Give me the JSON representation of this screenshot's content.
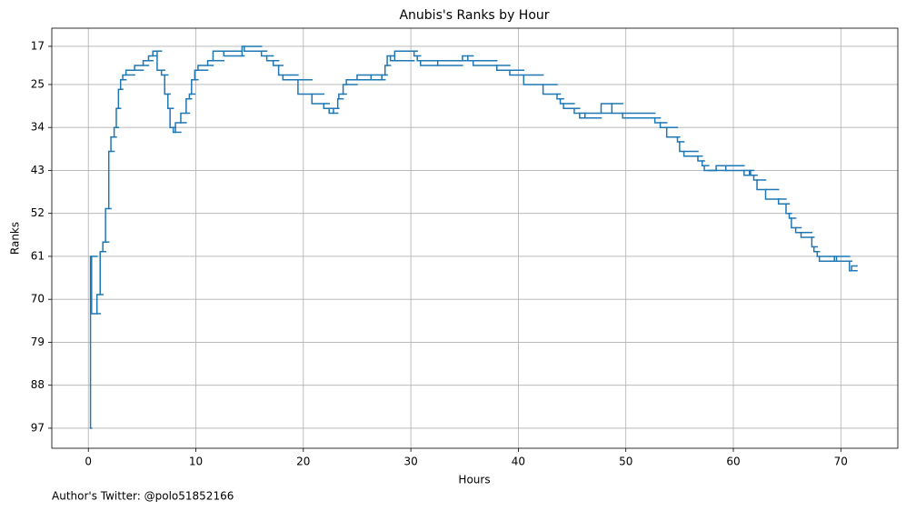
{
  "chart_data": {
    "type": "step",
    "title": "Anubis's Ranks by Hour",
    "xlabel": "Hours",
    "ylabel": "Ranks",
    "footer": "Author's Twitter: @polo51852166",
    "color": "#1f77b4",
    "grid": true,
    "y_inverted": true,
    "xlim": [
      -3.4,
      75.3
    ],
    "ylim": [
      101.2,
      13.2
    ],
    "xticks": [
      0,
      10,
      20,
      30,
      40,
      50,
      60,
      70
    ],
    "yticks": [
      17,
      25,
      34,
      43,
      52,
      61,
      70,
      79,
      88,
      97
    ],
    "series": [
      {
        "name": "Anubis",
        "color": "#1f77b4",
        "x": [
          0.2,
          0.3,
          0.8,
          1.1,
          1.35,
          1.6,
          1.9,
          2.1,
          2.4,
          2.6,
          2.8,
          3.0,
          3.2,
          3.5,
          4.3,
          5.1,
          5.6,
          6.0,
          6.4,
          6.8,
          7.1,
          7.4,
          7.6,
          7.9,
          8.1,
          8.6,
          9.1,
          9.4,
          9.6,
          9.9,
          10.2,
          11.1,
          11.6,
          12.6,
          14.3,
          14.5,
          16.1,
          16.6,
          17.2,
          17.7,
          18.1,
          19.5,
          20.8,
          21.9,
          22.4,
          22.8,
          23.2,
          23.3,
          23.7,
          24.0,
          25.0,
          26.3,
          27.3,
          27.6,
          27.8,
          28.1,
          28.5,
          30.3,
          30.6,
          30.9,
          32.5,
          34.8,
          35.3,
          35.8,
          38.0,
          39.2,
          40.5,
          42.3,
          43.6,
          43.9,
          44.2,
          45.2,
          45.7,
          46.2,
          47.7,
          48.7,
          49.7,
          52.7,
          53.2,
          53.8,
          54.8,
          55.0,
          55.4,
          56.7,
          57.1,
          57.3,
          57.7,
          58.4,
          59.3,
          61.0,
          61.5,
          61.6,
          61.9,
          62.2,
          63.0,
          64.2,
          64.9,
          65.2,
          65.4,
          65.8,
          66.3,
          67.3,
          67.5,
          67.8,
          68.0,
          69.4,
          69.6,
          70.8,
          71.0,
          71.5
        ],
        "values": [
          97,
          61,
          73,
          69,
          60,
          58,
          51,
          39,
          36,
          34,
          30,
          26,
          24,
          23,
          22,
          21,
          20,
          19,
          18,
          22,
          23,
          27,
          30,
          34,
          35,
          33,
          31,
          28,
          27,
          24,
          22,
          21,
          20,
          18,
          19,
          17,
          18,
          19,
          20,
          21,
          23,
          24,
          27,
          29,
          30,
          31,
          30,
          28,
          27,
          25,
          24,
          23,
          24,
          23,
          21,
          19,
          20,
          18,
          19,
          20,
          21,
          20,
          19,
          20,
          21,
          22,
          23,
          25,
          27,
          28,
          29,
          30,
          31,
          32,
          31,
          29,
          31,
          32,
          33,
          34,
          36,
          37,
          39,
          40,
          41,
          42,
          43,
          43,
          42,
          43,
          44,
          43,
          44,
          45,
          47,
          49,
          50,
          52,
          53,
          55,
          56,
          57,
          59,
          60,
          61,
          62,
          61,
          62,
          64,
          63
        ]
      }
    ]
  }
}
